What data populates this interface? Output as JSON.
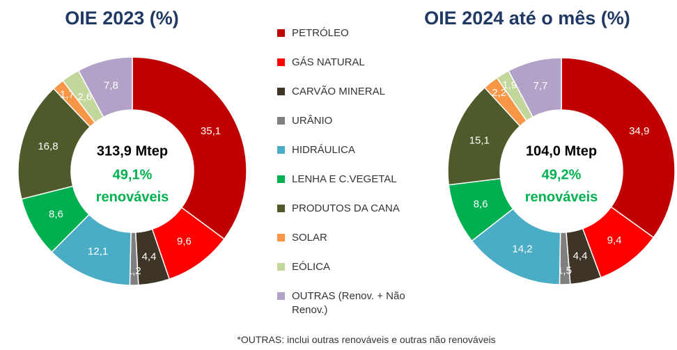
{
  "chart_data": [
    {
      "type": "pie",
      "title": "OIE 2023 (%)",
      "categories": [
        "PETRÓLEO",
        "GÁS NATURAL",
        "CARVÃO MINERAL",
        "URÂNIO",
        "HIDRÁULICA",
        "LENHA E C.VEGETAL",
        "PRODUTOS DA CANA",
        "SOLAR",
        "EÓLICA",
        "OUTRAS (Renov. + Não Renov.)"
      ],
      "values": [
        35.1,
        9.6,
        4.4,
        1.2,
        12.1,
        8.6,
        16.8,
        1.7,
        2.6,
        7.8
      ],
      "value_labels": [
        "35,1",
        "9,6",
        "4,4",
        "1,2",
        "12,1",
        "8,6",
        "16,8",
        "1,7",
        "2,6",
        "7,8"
      ],
      "colors": [
        "#c00000",
        "#ff0000",
        "#3f3527",
        "#7f7f7f",
        "#4bacc6",
        "#00b050",
        "#4f5a2a",
        "#f79646",
        "#c3d69b",
        "#b3a2c7"
      ],
      "center_labels": [
        "313,9 Mtep",
        "49,1%",
        "renováveis"
      ]
    },
    {
      "type": "pie",
      "title": "OIE 2024 até o mês (%)",
      "categories": [
        "PETRÓLEO",
        "GÁS NATURAL",
        "CARVÃO MINERAL",
        "URÂNIO",
        "HIDRÁULICA",
        "LENHA E C.VEGETAL",
        "PRODUTOS DA CANA",
        "SOLAR",
        "EÓLICA",
        "OUTRAS (Renov. + Não Renov.)"
      ],
      "values": [
        34.9,
        9.4,
        4.4,
        1.5,
        14.2,
        8.6,
        15.1,
        2.2,
        1.9,
        7.7
      ],
      "value_labels": [
        "34,9",
        "9,4",
        "4,4",
        "1,5",
        "14,2",
        "8,6",
        "15,1",
        "2,2",
        "1,9",
        "7,7"
      ],
      "colors": [
        "#c00000",
        "#ff0000",
        "#3f3527",
        "#7f7f7f",
        "#4bacc6",
        "#00b050",
        "#4f5a2a",
        "#f79646",
        "#c3d69b",
        "#b3a2c7"
      ],
      "center_labels": [
        "104,0 Mtep",
        "49,2%",
        "renováveis"
      ]
    }
  ],
  "footnote": "*OUTRAS: inclui outras renováveis e outras não renováveis"
}
